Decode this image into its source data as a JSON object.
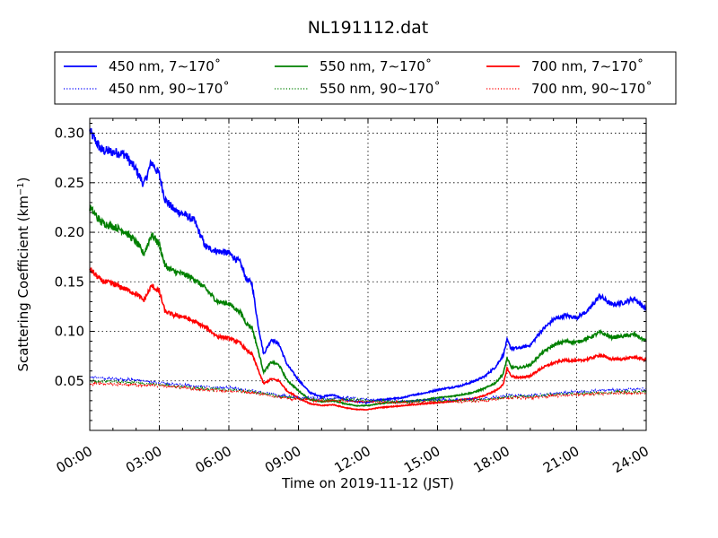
{
  "chart_data": {
    "type": "line",
    "title": "NL191112.dat",
    "xlabel": "Time on 2019-11-12 (JST)",
    "ylabel_main": "Scattering Coefficient (km",
    "ylabel_sup": "−1",
    "ylabel_end": ")",
    "xlim": [
      "00:00",
      "24:00"
    ],
    "ylim": [
      0.0,
      0.315
    ],
    "xticks": [
      "00:00",
      "03:00",
      "06:00",
      "09:00",
      "12:00",
      "15:00",
      "18:00",
      "21:00",
      "24:00"
    ],
    "yticks": [
      0.05,
      0.1,
      0.15,
      0.2,
      0.25,
      0.3
    ],
    "ytick_labels": [
      "0.05",
      "0.10",
      "0.15",
      "0.20",
      "0.25",
      "0.30"
    ],
    "grid": true,
    "legend_position": "top",
    "series": [
      {
        "name": "450 nm, 7∼170˚",
        "color": "#0000ff",
        "style": "solid",
        "points": [
          [
            "00:00",
            0.302
          ],
          [
            "00:30",
            0.283
          ],
          [
            "01:00",
            0.281
          ],
          [
            "01:30",
            0.279
          ],
          [
            "02:00",
            0.263
          ],
          [
            "02:20",
            0.248
          ],
          [
            "02:40",
            0.271
          ],
          [
            "03:00",
            0.258
          ],
          [
            "03:15",
            0.233
          ],
          [
            "03:40",
            0.222
          ],
          [
            "04:00",
            0.219
          ],
          [
            "04:30",
            0.212
          ],
          [
            "05:00",
            0.185
          ],
          [
            "05:30",
            0.181
          ],
          [
            "06:00",
            0.179
          ],
          [
            "06:30",
            0.169
          ],
          [
            "06:45",
            0.153
          ],
          [
            "07:00",
            0.148
          ],
          [
            "07:15",
            0.108
          ],
          [
            "07:30",
            0.077
          ],
          [
            "07:50",
            0.092
          ],
          [
            "08:10",
            0.087
          ],
          [
            "08:30",
            0.067
          ],
          [
            "09:00",
            0.051
          ],
          [
            "09:30",
            0.038
          ],
          [
            "10:00",
            0.034
          ],
          [
            "10:30",
            0.036
          ],
          [
            "11:00",
            0.031
          ],
          [
            "11:30",
            0.029
          ],
          [
            "12:00",
            0.028
          ],
          [
            "12:30",
            0.031
          ],
          [
            "13:00",
            0.032
          ],
          [
            "13:30",
            0.033
          ],
          [
            "14:00",
            0.036
          ],
          [
            "14:30",
            0.038
          ],
          [
            "15:00",
            0.041
          ],
          [
            "15:30",
            0.043
          ],
          [
            "16:00",
            0.045
          ],
          [
            "16:30",
            0.049
          ],
          [
            "17:00",
            0.054
          ],
          [
            "17:30",
            0.064
          ],
          [
            "17:50",
            0.076
          ],
          [
            "18:00",
            0.091
          ],
          [
            "18:10",
            0.083
          ],
          [
            "18:30",
            0.083
          ],
          [
            "19:00",
            0.086
          ],
          [
            "19:30",
            0.101
          ],
          [
            "20:00",
            0.112
          ],
          [
            "20:30",
            0.116
          ],
          [
            "21:00",
            0.114
          ],
          [
            "21:30",
            0.121
          ],
          [
            "22:00",
            0.136
          ],
          [
            "22:30",
            0.127
          ],
          [
            "23:00",
            0.129
          ],
          [
            "23:30",
            0.133
          ],
          [
            "24:00",
            0.122
          ]
        ]
      },
      {
        "name": "550 nm, 7∼170˚",
        "color": "#008000",
        "style": "solid",
        "points": [
          [
            "00:00",
            0.225
          ],
          [
            "00:30",
            0.21
          ],
          [
            "01:00",
            0.206
          ],
          [
            "01:30",
            0.201
          ],
          [
            "02:00",
            0.19
          ],
          [
            "02:20",
            0.178
          ],
          [
            "02:40",
            0.198
          ],
          [
            "03:00",
            0.188
          ],
          [
            "03:15",
            0.166
          ],
          [
            "03:40",
            0.16
          ],
          [
            "04:00",
            0.158
          ],
          [
            "04:30",
            0.153
          ],
          [
            "05:00",
            0.143
          ],
          [
            "05:30",
            0.13
          ],
          [
            "06:00",
            0.128
          ],
          [
            "06:30",
            0.119
          ],
          [
            "06:45",
            0.108
          ],
          [
            "07:00",
            0.104
          ],
          [
            "07:15",
            0.082
          ],
          [
            "07:30",
            0.059
          ],
          [
            "07:50",
            0.069
          ],
          [
            "08:10",
            0.066
          ],
          [
            "08:30",
            0.051
          ],
          [
            "09:00",
            0.04
          ],
          [
            "09:30",
            0.031
          ],
          [
            "10:00",
            0.029
          ],
          [
            "10:30",
            0.03
          ],
          [
            "11:00",
            0.027
          ],
          [
            "11:30",
            0.025
          ],
          [
            "12:00",
            0.025
          ],
          [
            "12:30",
            0.027
          ],
          [
            "13:00",
            0.028
          ],
          [
            "13:30",
            0.029
          ],
          [
            "14:00",
            0.03
          ],
          [
            "14:30",
            0.031
          ],
          [
            "15:00",
            0.033
          ],
          [
            "15:30",
            0.034
          ],
          [
            "16:00",
            0.036
          ],
          [
            "16:30",
            0.038
          ],
          [
            "17:00",
            0.042
          ],
          [
            "17:30",
            0.048
          ],
          [
            "17:50",
            0.057
          ],
          [
            "18:00",
            0.073
          ],
          [
            "18:10",
            0.064
          ],
          [
            "18:30",
            0.063
          ],
          [
            "19:00",
            0.066
          ],
          [
            "19:30",
            0.078
          ],
          [
            "20:00",
            0.086
          ],
          [
            "20:30",
            0.09
          ],
          [
            "21:00",
            0.089
          ],
          [
            "21:30",
            0.093
          ],
          [
            "22:00",
            0.099
          ],
          [
            "22:30",
            0.094
          ],
          [
            "23:00",
            0.095
          ],
          [
            "23:30",
            0.097
          ],
          [
            "24:00",
            0.09
          ]
        ]
      },
      {
        "name": "700 nm, 7∼170˚",
        "color": "#ff0000",
        "style": "solid",
        "points": [
          [
            "00:00",
            0.163
          ],
          [
            "00:30",
            0.151
          ],
          [
            "01:00",
            0.148
          ],
          [
            "01:30",
            0.143
          ],
          [
            "02:00",
            0.138
          ],
          [
            "02:20",
            0.131
          ],
          [
            "02:40",
            0.146
          ],
          [
            "03:00",
            0.14
          ],
          [
            "03:15",
            0.12
          ],
          [
            "03:40",
            0.116
          ],
          [
            "04:00",
            0.115
          ],
          [
            "04:30",
            0.11
          ],
          [
            "05:00",
            0.104
          ],
          [
            "05:30",
            0.095
          ],
          [
            "06:00",
            0.093
          ],
          [
            "06:30",
            0.088
          ],
          [
            "06:45",
            0.081
          ],
          [
            "07:00",
            0.077
          ],
          [
            "07:15",
            0.062
          ],
          [
            "07:30",
            0.047
          ],
          [
            "07:50",
            0.052
          ],
          [
            "08:10",
            0.05
          ],
          [
            "08:30",
            0.04
          ],
          [
            "09:00",
            0.033
          ],
          [
            "09:30",
            0.027
          ],
          [
            "10:00",
            0.025
          ],
          [
            "10:30",
            0.026
          ],
          [
            "11:00",
            0.023
          ],
          [
            "11:30",
            0.021
          ],
          [
            "12:00",
            0.021
          ],
          [
            "12:30",
            0.023
          ],
          [
            "13:00",
            0.024
          ],
          [
            "13:30",
            0.025
          ],
          [
            "14:00",
            0.026
          ],
          [
            "14:30",
            0.027
          ],
          [
            "15:00",
            0.028
          ],
          [
            "15:30",
            0.029
          ],
          [
            "16:00",
            0.031
          ],
          [
            "16:30",
            0.032
          ],
          [
            "17:00",
            0.035
          ],
          [
            "17:30",
            0.04
          ],
          [
            "17:50",
            0.046
          ],
          [
            "18:00",
            0.063
          ],
          [
            "18:10",
            0.055
          ],
          [
            "18:30",
            0.053
          ],
          [
            "19:00",
            0.055
          ],
          [
            "19:30",
            0.063
          ],
          [
            "20:00",
            0.068
          ],
          [
            "20:30",
            0.071
          ],
          [
            "21:00",
            0.07
          ],
          [
            "21:30",
            0.072
          ],
          [
            "22:00",
            0.076
          ],
          [
            "22:30",
            0.072
          ],
          [
            "23:00",
            0.072
          ],
          [
            "23:30",
            0.074
          ],
          [
            "24:00",
            0.071
          ]
        ]
      },
      {
        "name": "450 nm, 90∼170˚",
        "color": "#0000ff",
        "style": "dotted",
        "points": [
          [
            "00:00",
            0.054
          ],
          [
            "01:00",
            0.052
          ],
          [
            "02:00",
            0.051
          ],
          [
            "03:00",
            0.048
          ],
          [
            "04:00",
            0.046
          ],
          [
            "05:00",
            0.044
          ],
          [
            "06:00",
            0.043
          ],
          [
            "07:00",
            0.04
          ],
          [
            "08:00",
            0.036
          ],
          [
            "09:00",
            0.033
          ],
          [
            "10:00",
            0.032
          ],
          [
            "11:00",
            0.033
          ],
          [
            "12:00",
            0.031
          ],
          [
            "13:00",
            0.03
          ],
          [
            "14:00",
            0.03
          ],
          [
            "15:00",
            0.031
          ],
          [
            "16:00",
            0.031
          ],
          [
            "17:00",
            0.032
          ],
          [
            "18:00",
            0.035
          ],
          [
            "19:00",
            0.035
          ],
          [
            "20:00",
            0.037
          ],
          [
            "21:00",
            0.039
          ],
          [
            "22:00",
            0.04
          ],
          [
            "23:00",
            0.041
          ],
          [
            "24:00",
            0.042
          ]
        ]
      },
      {
        "name": "550 nm, 90∼170˚",
        "color": "#008000",
        "style": "dotted",
        "points": [
          [
            "00:00",
            0.05
          ],
          [
            "01:00",
            0.049
          ],
          [
            "02:00",
            0.048
          ],
          [
            "03:00",
            0.046
          ],
          [
            "04:00",
            0.044
          ],
          [
            "05:00",
            0.042
          ],
          [
            "06:00",
            0.041
          ],
          [
            "07:00",
            0.039
          ],
          [
            "08:00",
            0.035
          ],
          [
            "09:00",
            0.032
          ],
          [
            "10:00",
            0.031
          ],
          [
            "11:00",
            0.031
          ],
          [
            "12:00",
            0.03
          ],
          [
            "13:00",
            0.029
          ],
          [
            "14:00",
            0.029
          ],
          [
            "15:00",
            0.03
          ],
          [
            "16:00",
            0.03
          ],
          [
            "17:00",
            0.031
          ],
          [
            "18:00",
            0.034
          ],
          [
            "19:00",
            0.034
          ],
          [
            "20:00",
            0.036
          ],
          [
            "21:00",
            0.037
          ],
          [
            "22:00",
            0.038
          ],
          [
            "23:00",
            0.039
          ],
          [
            "24:00",
            0.039
          ]
        ]
      },
      {
        "name": "700 nm, 90∼170˚",
        "color": "#ff0000",
        "style": "dotted",
        "points": [
          [
            "00:00",
            0.047
          ],
          [
            "01:00",
            0.047
          ],
          [
            "02:00",
            0.046
          ],
          [
            "03:00",
            0.045
          ],
          [
            "04:00",
            0.043
          ],
          [
            "05:00",
            0.041
          ],
          [
            "06:00",
            0.04
          ],
          [
            "07:00",
            0.038
          ],
          [
            "08:00",
            0.034
          ],
          [
            "09:00",
            0.031
          ],
          [
            "10:00",
            0.03
          ],
          [
            "11:00",
            0.03
          ],
          [
            "12:00",
            0.029
          ],
          [
            "13:00",
            0.028
          ],
          [
            "14:00",
            0.028
          ],
          [
            "15:00",
            0.029
          ],
          [
            "16:00",
            0.029
          ],
          [
            "17:00",
            0.03
          ],
          [
            "18:00",
            0.033
          ],
          [
            "19:00",
            0.033
          ],
          [
            "20:00",
            0.035
          ],
          [
            "21:00",
            0.036
          ],
          [
            "22:00",
            0.037
          ],
          [
            "23:00",
            0.038
          ],
          [
            "24:00",
            0.038
          ]
        ]
      }
    ]
  }
}
